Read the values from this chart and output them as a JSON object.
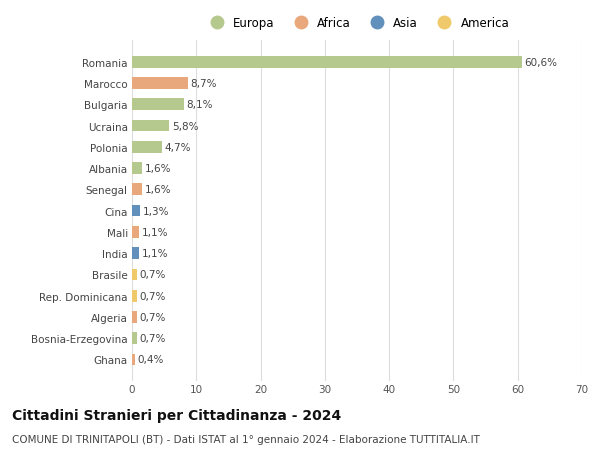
{
  "categories": [
    "Romania",
    "Marocco",
    "Bulgaria",
    "Ucraina",
    "Polonia",
    "Albania",
    "Senegal",
    "Cina",
    "Mali",
    "India",
    "Brasile",
    "Rep. Dominicana",
    "Algeria",
    "Bosnia-Erzegovina",
    "Ghana"
  ],
  "values": [
    60.6,
    8.7,
    8.1,
    5.8,
    4.7,
    1.6,
    1.6,
    1.3,
    1.1,
    1.1,
    0.7,
    0.7,
    0.7,
    0.7,
    0.4
  ],
  "labels": [
    "60,6%",
    "8,7%",
    "8,1%",
    "5,8%",
    "4,7%",
    "1,6%",
    "1,6%",
    "1,3%",
    "1,1%",
    "1,1%",
    "0,7%",
    "0,7%",
    "0,7%",
    "0,7%",
    "0,4%"
  ],
  "continents": [
    "Europa",
    "Africa",
    "Europa",
    "Europa",
    "Europa",
    "Europa",
    "Africa",
    "Asia",
    "Africa",
    "Asia",
    "America",
    "America",
    "Africa",
    "Europa",
    "Africa"
  ],
  "continent_colors": {
    "Europa": "#b5c98e",
    "Africa": "#e8a87c",
    "Asia": "#6090bb",
    "America": "#f0c96a"
  },
  "legend_order": [
    "Europa",
    "Africa",
    "Asia",
    "America"
  ],
  "title": "Cittadini Stranieri per Cittadinanza - 2024",
  "subtitle": "COMUNE DI TRINITAPOLI (BT) - Dati ISTAT al 1° gennaio 2024 - Elaborazione TUTTITALIA.IT",
  "xlim": [
    0,
    70
  ],
  "xticks": [
    0,
    10,
    20,
    30,
    40,
    50,
    60,
    70
  ],
  "background_color": "#ffffff",
  "grid_color": "#dddddd",
  "bar_height": 0.55,
  "title_fontsize": 10,
  "subtitle_fontsize": 7.5,
  "label_fontsize": 7.5,
  "tick_fontsize": 7.5,
  "legend_fontsize": 8.5
}
